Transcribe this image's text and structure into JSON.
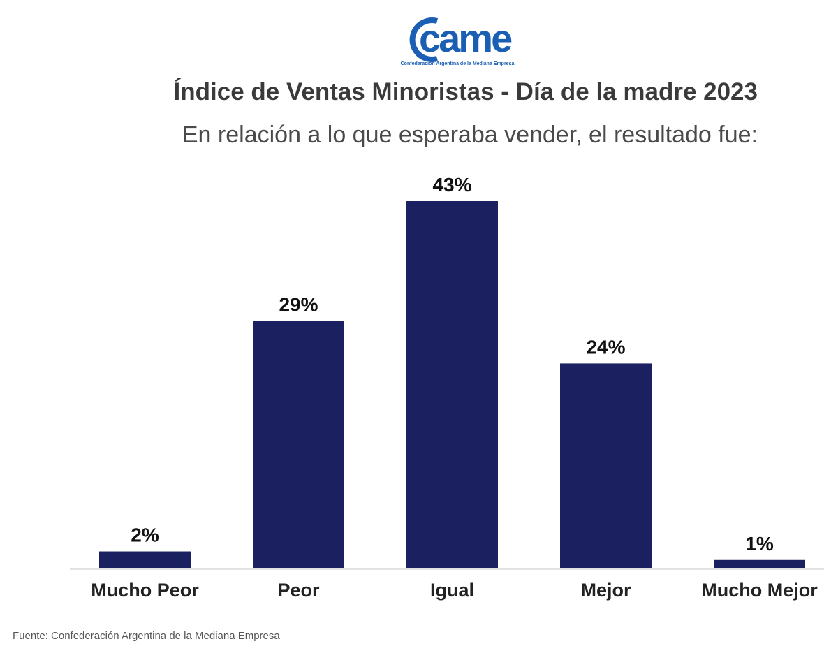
{
  "logo": {
    "text": "came",
    "subtitle": "Confederación Argentina de la Mediana Empresa",
    "color": "#1a5fb4"
  },
  "source": "Fuente: Confederación Argentina de la Mediana Empresa",
  "chart_data": {
    "type": "bar",
    "title": "Índice de Ventas Minoristas - Día de la madre 2023",
    "subtitle": "En relación a lo que esperaba vender, el resultado fue:",
    "categories": [
      "Mucho Peor",
      "Peor",
      "Igual",
      "Mejor",
      "Mucho Mejor"
    ],
    "values": [
      2,
      29,
      43,
      24,
      1
    ],
    "data_labels": [
      "2%",
      "29%",
      "43%",
      "24%",
      "1%"
    ],
    "bar_color": "#1b2160",
    "grid": false,
    "ylim": [
      0,
      43
    ]
  }
}
